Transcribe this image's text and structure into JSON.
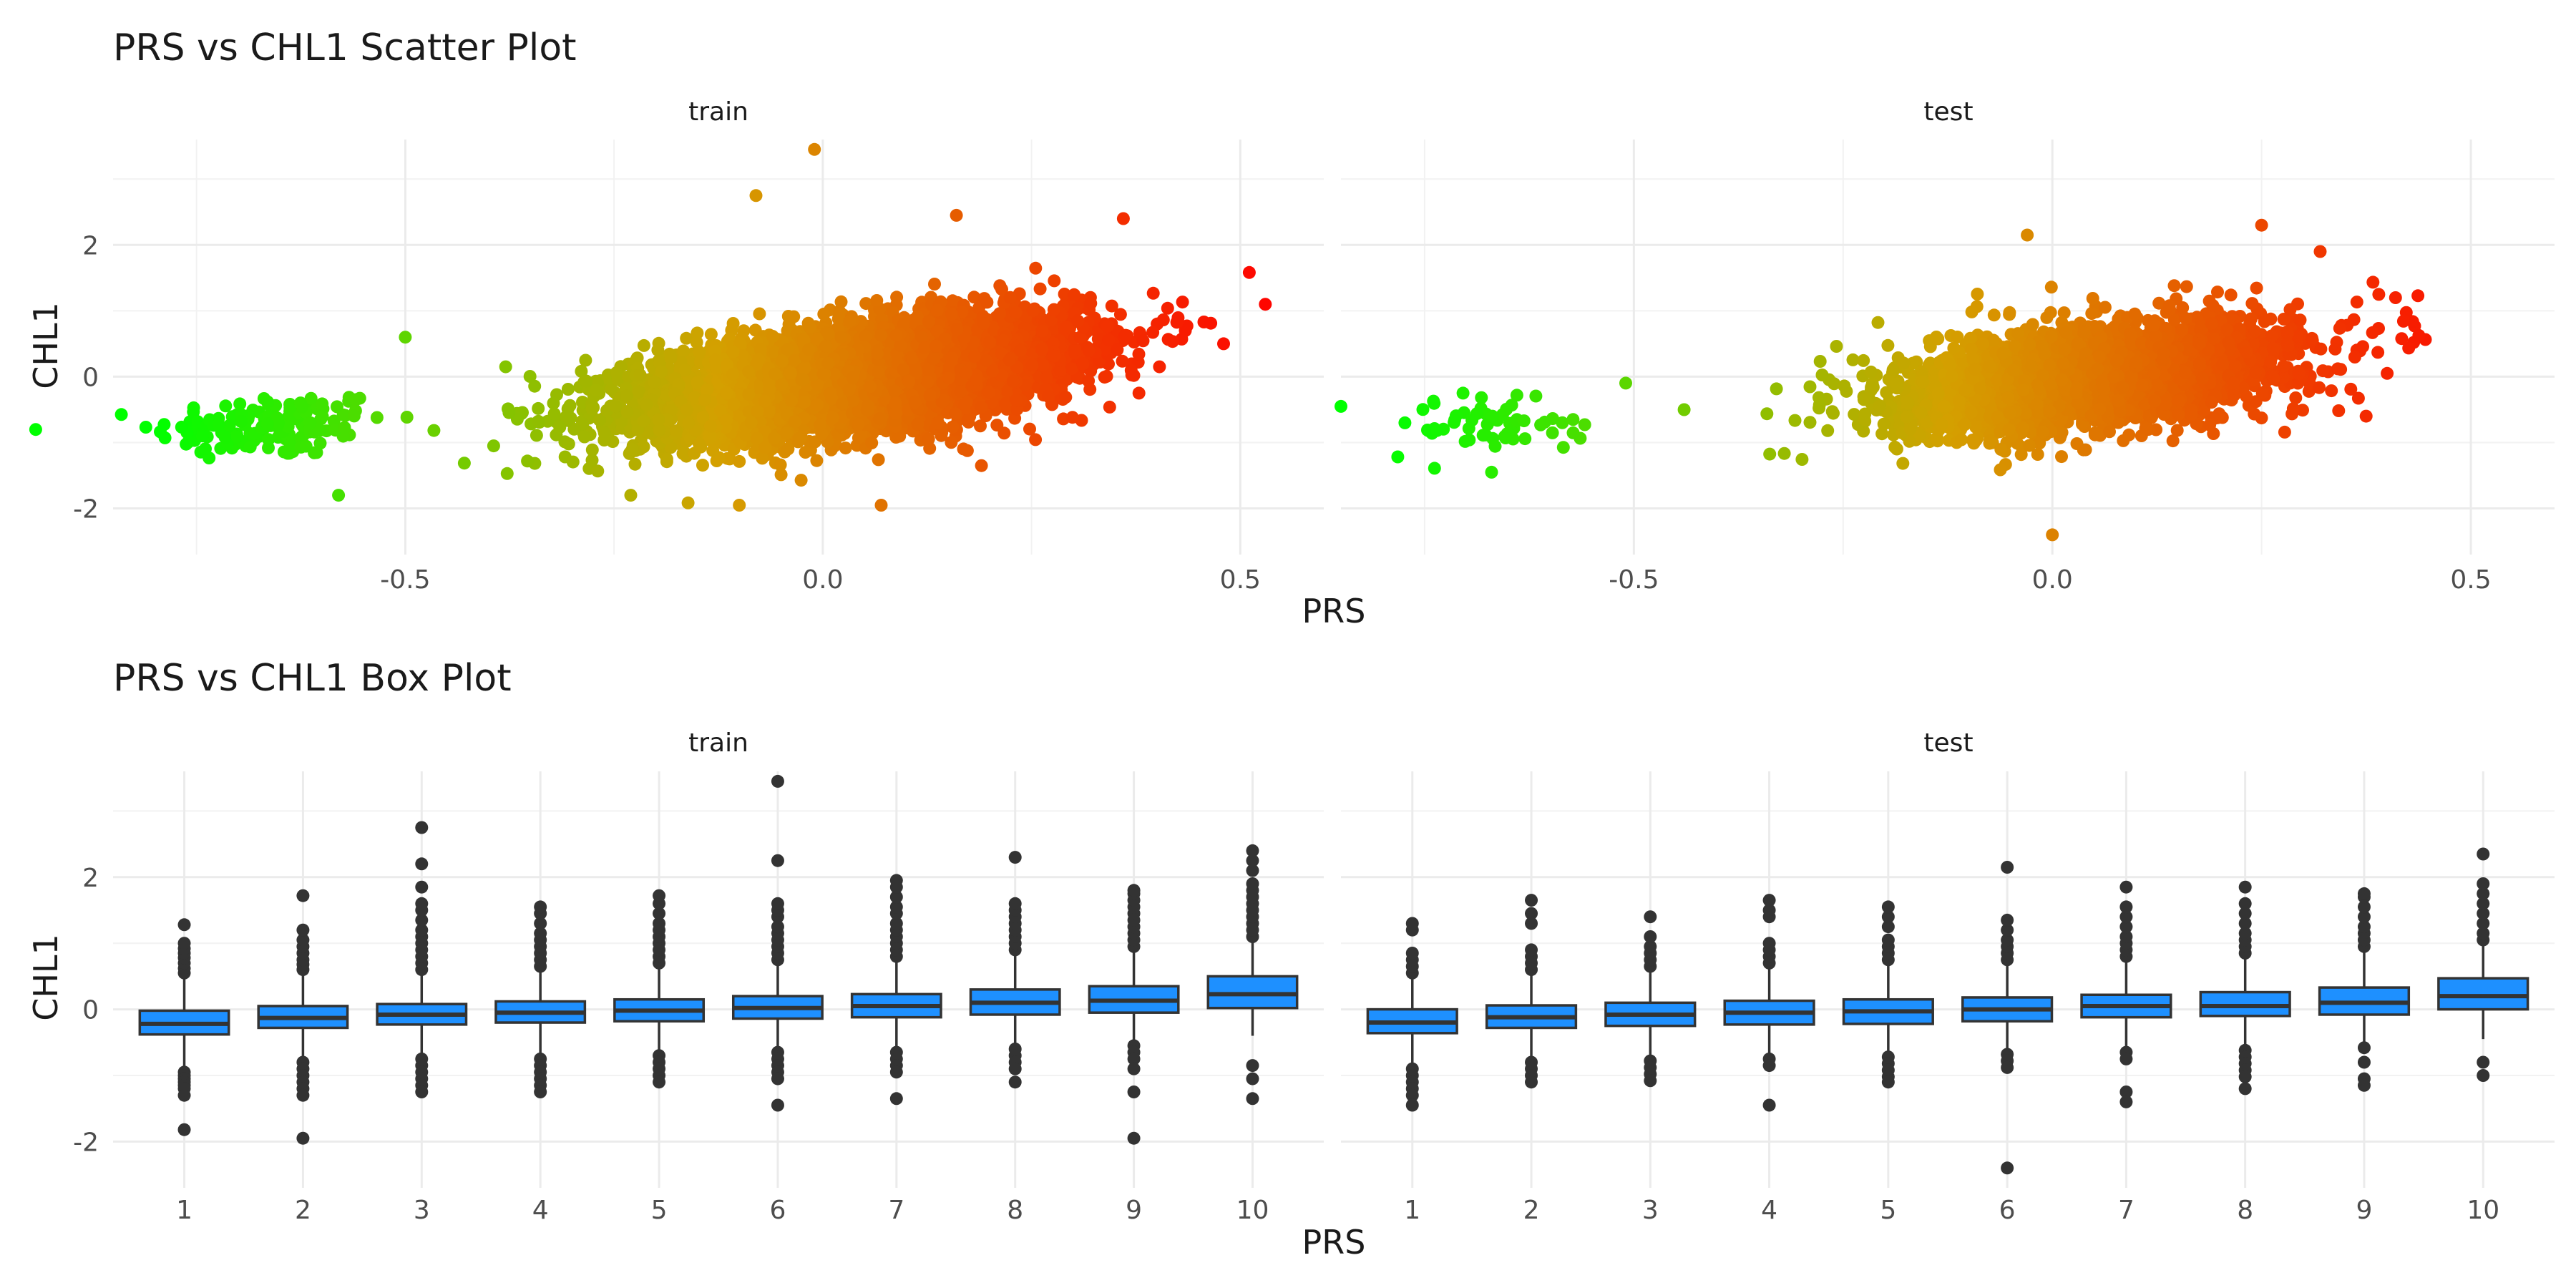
{
  "chart_data": [
    {
      "type": "scatter",
      "title": "PRS vs CHL1 Scatter Plot",
      "xlabel": "PRS",
      "ylabel": "CHL1",
      "panels": [
        "train",
        "test"
      ],
      "xlim": [
        -0.85,
        0.6
      ],
      "ylim": [
        -2.7,
        3.6
      ],
      "x_ticks": [
        -0.5,
        0.0,
        0.5
      ],
      "x_tick_labels": [
        "-0.5",
        "0.0",
        "0.5"
      ],
      "y_ticks": [
        -2,
        0,
        2
      ],
      "y_tick_labels": [
        "-2",
        "0",
        "2"
      ],
      "grid": true,
      "legend": "none",
      "color_scale": {
        "low": "#00ff00",
        "mid": "#d4a000",
        "high": "#ff0000",
        "by": "PRS"
      },
      "train": {
        "n_approx": 6000,
        "clusters": [
          {
            "x_mean": -0.66,
            "x_sd": 0.07,
            "y_mean": -0.75,
            "y_sd": 0.25,
            "slope": 0.6,
            "n": 150
          },
          {
            "x_mean": 0.04,
            "x_sd": 0.13,
            "y_mean": 0.0,
            "y_sd": 0.38,
            "slope": 1.6,
            "n": 5800
          }
        ],
        "notable_points": [
          {
            "x": -0.01,
            "y": 3.45
          },
          {
            "x": -0.08,
            "y": 2.75
          },
          {
            "x": 0.53,
            "y": 1.1
          },
          {
            "x": 0.48,
            "y": 0.5
          },
          {
            "x": 0.36,
            "y": 2.4
          },
          {
            "x": 0.16,
            "y": 2.45
          },
          {
            "x": -0.58,
            "y": -1.8
          },
          {
            "x": -0.23,
            "y": -1.8
          },
          {
            "x": -0.1,
            "y": -1.95
          },
          {
            "x": 0.07,
            "y": -1.95
          },
          {
            "x": -0.5,
            "y": 0.6
          },
          {
            "x": 0.19,
            "y": -1.35
          }
        ]
      },
      "test": {
        "n_approx": 3000,
        "clusters": [
          {
            "x_mean": -0.65,
            "x_sd": 0.06,
            "y_mean": -0.7,
            "y_sd": 0.25,
            "slope": 0.5,
            "n": 60
          },
          {
            "x_mean": 0.05,
            "x_sd": 0.12,
            "y_mean": 0.0,
            "y_sd": 0.38,
            "slope": 1.5,
            "n": 2900
          }
        ],
        "notable_points": [
          {
            "x": -0.85,
            "y": -0.45
          },
          {
            "x": -0.44,
            "y": -0.5
          },
          {
            "x": 0.0,
            "y": -2.4
          },
          {
            "x": 0.25,
            "y": 2.3
          },
          {
            "x": 0.32,
            "y": 1.9
          },
          {
            "x": -0.03,
            "y": 2.15
          },
          {
            "x": 0.41,
            "y": 1.2
          },
          {
            "x": 0.4,
            "y": 0.05
          },
          {
            "x": -0.67,
            "y": -1.45
          }
        ]
      }
    },
    {
      "type": "box",
      "title": "PRS vs CHL1 Box Plot",
      "xlabel": "PRS",
      "ylabel": "CHL1",
      "panels": [
        "train",
        "test"
      ],
      "categories": [
        "1",
        "2",
        "3",
        "4",
        "5",
        "6",
        "7",
        "8",
        "9",
        "10"
      ],
      "ylim": [
        -2.7,
        3.6
      ],
      "y_ticks": [
        -2,
        0,
        2
      ],
      "y_tick_labels": [
        "-2",
        "0",
        "2"
      ],
      "fill": "#1e90ff",
      "train": {
        "q1": [
          -0.38,
          -0.28,
          -0.23,
          -0.2,
          -0.18,
          -0.14,
          -0.12,
          -0.08,
          -0.05,
          0.02
        ],
        "median": [
          -0.22,
          -0.13,
          -0.08,
          -0.05,
          -0.02,
          0.02,
          0.05,
          0.1,
          0.13,
          0.23
        ],
        "q3": [
          -0.02,
          0.05,
          0.08,
          0.12,
          0.15,
          0.2,
          0.23,
          0.3,
          0.35,
          0.5
        ],
        "whisker_low": [
          -0.9,
          -0.75,
          -0.7,
          -0.7,
          -0.65,
          -0.6,
          -0.6,
          -0.55,
          -0.5,
          -0.4
        ],
        "whisker_high": [
          0.5,
          0.55,
          0.55,
          0.6,
          0.65,
          0.7,
          0.75,
          0.85,
          0.9,
          1.05
        ],
        "outliers_high": [
          [
            0.55,
            0.62,
            0.7,
            0.78,
            0.85,
            0.92,
            1.0,
            1.28
          ],
          [
            0.6,
            0.68,
            0.75,
            0.85,
            0.95,
            1.05,
            1.2,
            1.72
          ],
          [
            0.6,
            0.7,
            0.8,
            0.9,
            1.0,
            1.1,
            1.2,
            1.35,
            1.5,
            1.6,
            1.85,
            2.2,
            2.75
          ],
          [
            0.65,
            0.75,
            0.85,
            0.95,
            1.05,
            1.15,
            1.3,
            1.45,
            1.55
          ],
          [
            0.7,
            0.8,
            0.9,
            1.0,
            1.1,
            1.2,
            1.3,
            1.45,
            1.6,
            1.72
          ],
          [
            0.75,
            0.85,
            0.95,
            1.05,
            1.15,
            1.25,
            1.4,
            1.5,
            1.6,
            2.25,
            3.45
          ],
          [
            0.8,
            0.9,
            1.0,
            1.1,
            1.2,
            1.3,
            1.45,
            1.55,
            1.7,
            1.85,
            1.95
          ],
          [
            0.9,
            1.0,
            1.1,
            1.2,
            1.3,
            1.4,
            1.5,
            1.6,
            2.3
          ],
          [
            0.95,
            1.05,
            1.15,
            1.25,
            1.35,
            1.45,
            1.55,
            1.65,
            1.75,
            1.8
          ],
          [
            1.1,
            1.2,
            1.3,
            1.4,
            1.5,
            1.6,
            1.7,
            1.8,
            1.9,
            2.1,
            2.25,
            2.4
          ]
        ],
        "outliers_low": [
          [
            -0.95,
            -1.0,
            -1.05,
            -1.1,
            -1.15,
            -1.2,
            -1.3,
            -1.82
          ],
          [
            -0.8,
            -0.9,
            -1.0,
            -1.1,
            -1.2,
            -1.3,
            -1.95
          ],
          [
            -0.75,
            -0.85,
            -0.95,
            -1.05,
            -1.15,
            -1.25
          ],
          [
            -0.75,
            -0.85,
            -0.95,
            -1.05,
            -1.15,
            -1.25
          ],
          [
            -0.7,
            -0.8,
            -0.9,
            -1.0,
            -1.1
          ],
          [
            -0.65,
            -0.75,
            -0.85,
            -0.95,
            -1.05,
            -1.45
          ],
          [
            -0.65,
            -0.75,
            -0.85,
            -0.95,
            -1.35
          ],
          [
            -0.6,
            -0.7,
            -0.8,
            -0.9,
            -1.1
          ],
          [
            -0.55,
            -0.65,
            -0.75,
            -0.9,
            -1.25,
            -1.95
          ],
          [
            -0.85,
            -1.05,
            -1.35
          ]
        ]
      },
      "test": {
        "q1": [
          -0.36,
          -0.28,
          -0.25,
          -0.23,
          -0.22,
          -0.18,
          -0.12,
          -0.1,
          -0.08,
          0.0
        ],
        "median": [
          -0.2,
          -0.12,
          -0.08,
          -0.05,
          -0.03,
          0.0,
          0.05,
          0.05,
          0.1,
          0.2
        ],
        "q3": [
          0.0,
          0.06,
          0.1,
          0.13,
          0.15,
          0.18,
          0.22,
          0.26,
          0.33,
          0.47
        ],
        "whisker_low": [
          -0.85,
          -0.75,
          -0.72,
          -0.68,
          -0.65,
          -0.6,
          -0.58,
          -0.55,
          -0.5,
          -0.45
        ],
        "whisker_high": [
          0.5,
          0.55,
          0.6,
          0.65,
          0.7,
          0.7,
          0.75,
          0.8,
          0.9,
          1.0
        ],
        "outliers_high": [
          [
            0.55,
            0.65,
            0.75,
            0.85,
            1.2,
            1.3
          ],
          [
            0.6,
            0.7,
            0.8,
            0.9,
            1.3,
            1.45,
            1.65
          ],
          [
            0.65,
            0.75,
            0.85,
            0.95,
            1.1,
            1.4
          ],
          [
            0.7,
            0.8,
            0.9,
            1.0,
            1.4,
            1.5,
            1.65
          ],
          [
            0.75,
            0.85,
            0.95,
            1.05,
            1.25,
            1.4,
            1.55
          ],
          [
            0.75,
            0.85,
            0.95,
            1.05,
            1.2,
            1.35,
            2.15
          ],
          [
            0.8,
            0.9,
            1.0,
            1.1,
            1.25,
            1.4,
            1.55,
            1.85
          ],
          [
            0.85,
            0.95,
            1.05,
            1.15,
            1.3,
            1.45,
            1.6,
            1.85
          ],
          [
            0.95,
            1.05,
            1.15,
            1.25,
            1.4,
            1.55,
            1.7,
            1.75
          ],
          [
            1.05,
            1.15,
            1.3,
            1.45,
            1.6,
            1.75,
            1.9,
            2.35
          ]
        ],
        "outliers_low": [
          [
            -0.9,
            -1.0,
            -1.1,
            -1.2,
            -1.3,
            -1.45
          ],
          [
            -0.8,
            -0.9,
            -1.0,
            -1.1
          ],
          [
            -0.78,
            -0.88,
            -0.98,
            -1.08
          ],
          [
            -0.75,
            -0.85,
            -1.45
          ],
          [
            -0.72,
            -0.82,
            -0.92,
            -1.02,
            -1.1
          ],
          [
            -0.68,
            -0.78,
            -0.88,
            -2.4
          ],
          [
            -0.65,
            -0.75,
            -1.25,
            -1.4
          ],
          [
            -0.62,
            -0.72,
            -0.82,
            -0.92,
            -1.02,
            -1.2
          ],
          [
            -0.58,
            -0.8,
            -1.05,
            -1.15
          ],
          [
            -0.8,
            -1.0
          ]
        ]
      }
    }
  ]
}
